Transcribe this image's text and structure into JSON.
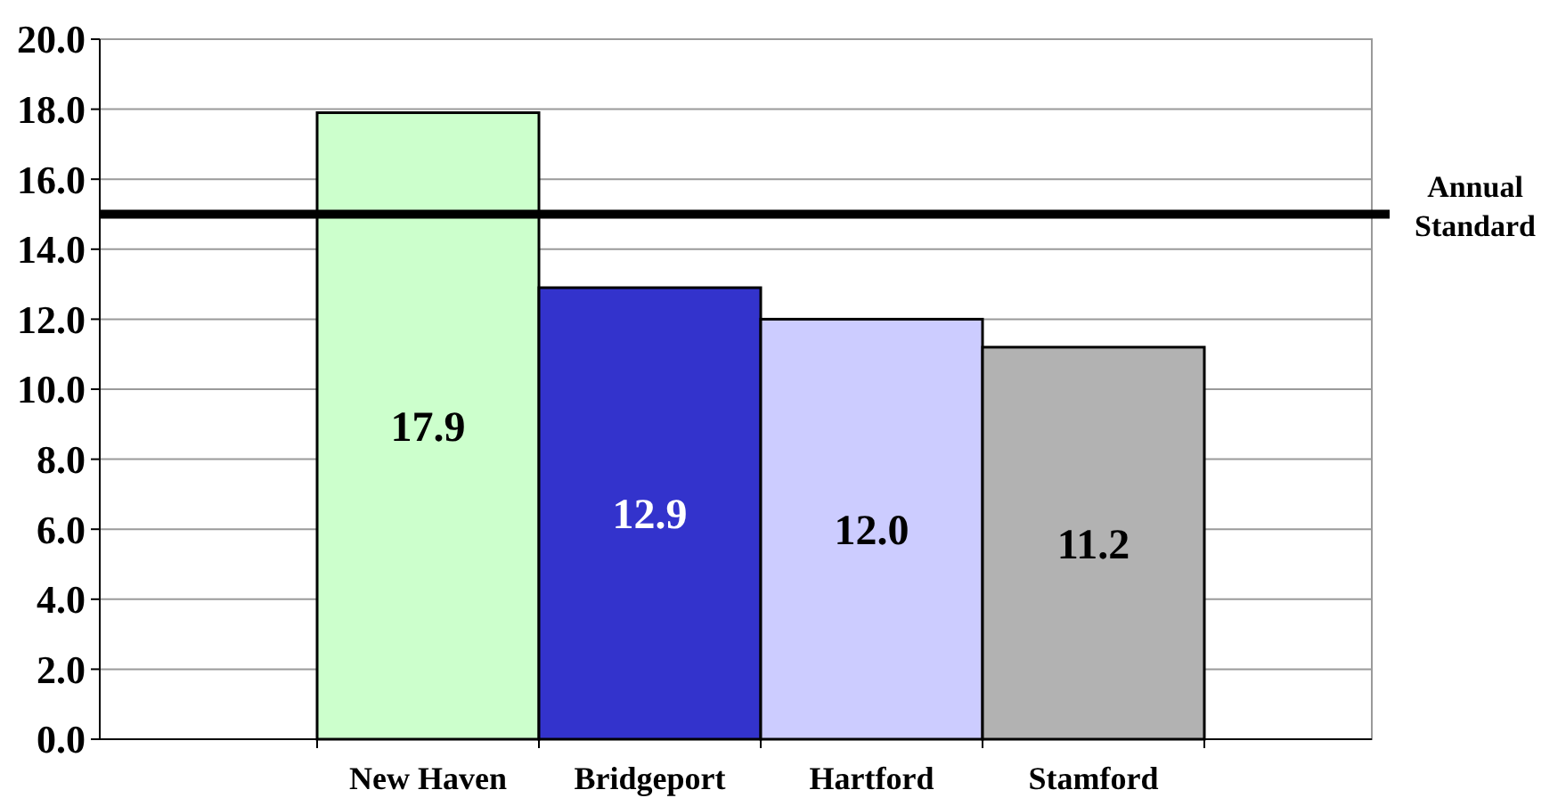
{
  "chart_data": {
    "type": "bar",
    "categories": [
      "New Haven",
      "Bridgeport",
      "Hartford",
      "Stamford"
    ],
    "values": [
      17.9,
      12.9,
      12.0,
      11.2
    ],
    "colors": [
      "#ccffcc",
      "#3333cc",
      "#ccccff",
      "#b2b2b2"
    ],
    "ylim": [
      0,
      20
    ],
    "yticks": [
      {
        "value": 0,
        "label": "0.0"
      },
      {
        "value": 2,
        "label": "2.0"
      },
      {
        "value": 4,
        "label": "4.0"
      },
      {
        "value": 6,
        "label": "6.0"
      },
      {
        "value": 8,
        "label": "8.0"
      },
      {
        "value": 10,
        "label": "10.0"
      },
      {
        "value": 12,
        "label": "12.0"
      },
      {
        "value": 14,
        "label": "14.0"
      },
      {
        "value": 16,
        "label": "16.0"
      },
      {
        "value": 18,
        "label": "18.0"
      },
      {
        "value": 20,
        "label": "20.0"
      }
    ],
    "grid": "y",
    "value_labels": [
      "17.9",
      "12.9",
      "12.0",
      "11.2"
    ],
    "ref_lines": [
      {
        "axis": "y",
        "value": 15,
        "label": "Annual Standard",
        "color": "#000000"
      }
    ]
  }
}
